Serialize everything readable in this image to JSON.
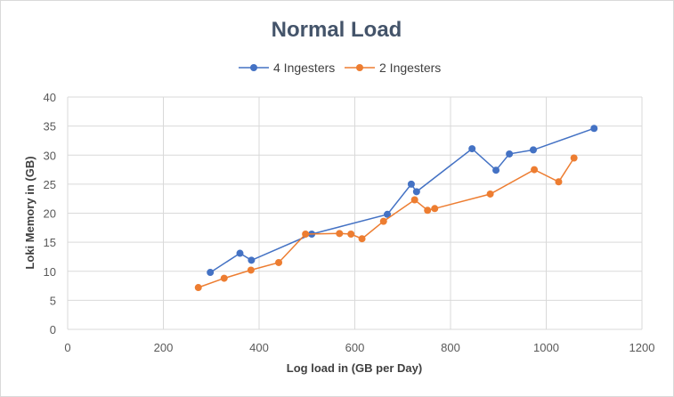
{
  "chart_data": {
    "type": "line",
    "title": "Normal Load",
    "xlabel": "Log load in (GB per Day)",
    "ylabel": "Loki Memory in (GB)",
    "xlim": [
      0,
      1200
    ],
    "ylim": [
      0,
      40
    ],
    "xticks": [
      0,
      200,
      400,
      600,
      800,
      1000,
      1200
    ],
    "yticks": [
      0,
      5,
      10,
      15,
      20,
      25,
      30,
      35,
      40
    ],
    "grid": true,
    "legend_position": "top",
    "series": [
      {
        "name": "4 Ingesters",
        "color": "#4472c4",
        "points": [
          [
            298,
            9.8
          ],
          [
            360,
            13.1
          ],
          [
            384,
            11.9
          ],
          [
            510,
            16.4
          ],
          [
            668,
            19.8
          ],
          [
            718,
            25.0
          ],
          [
            729,
            23.7
          ],
          [
            845,
            31.1
          ],
          [
            895,
            27.4
          ],
          [
            923,
            30.2
          ],
          [
            973,
            30.9
          ],
          [
            1100,
            34.6
          ]
        ]
      },
      {
        "name": "2 Ingesters",
        "color": "#ed7d31",
        "points": [
          [
            273,
            7.2
          ],
          [
            327,
            8.8
          ],
          [
            383,
            10.2
          ],
          [
            441,
            11.5
          ],
          [
            497,
            16.4
          ],
          [
            568,
            16.5
          ],
          [
            592,
            16.4
          ],
          [
            615,
            15.6
          ],
          [
            660,
            18.6
          ],
          [
            725,
            22.3
          ],
          [
            752,
            20.5
          ],
          [
            767,
            20.8
          ],
          [
            883,
            23.3
          ],
          [
            975,
            27.5
          ],
          [
            1026,
            25.4
          ],
          [
            1058,
            29.5
          ]
        ]
      }
    ]
  }
}
